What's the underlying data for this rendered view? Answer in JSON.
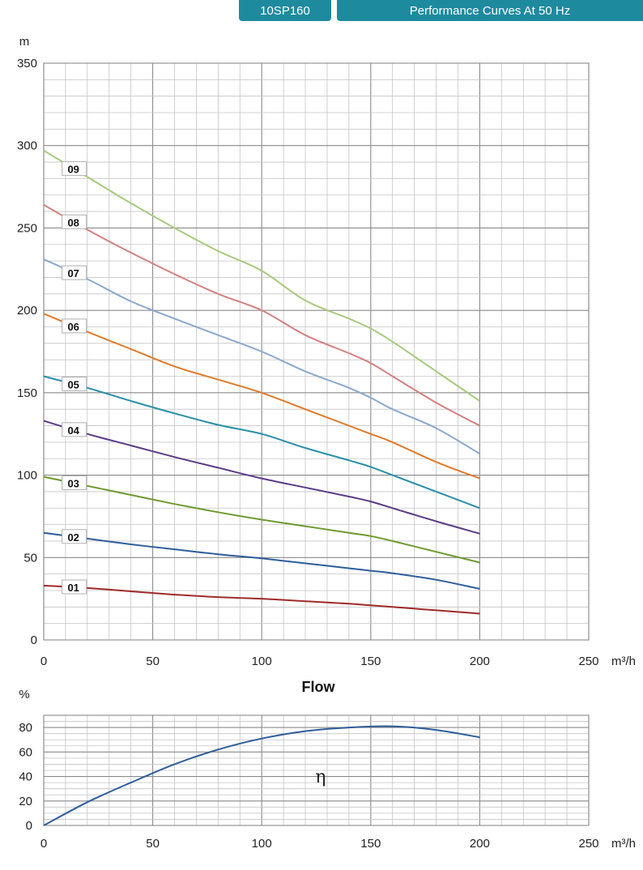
{
  "header": {
    "model": "10SP160",
    "title": "Performance Curves At 50 Hz"
  },
  "chart_data": [
    {
      "type": "line",
      "ylabel": "m",
      "xlabel": "Flow",
      "xunit": "m³/h",
      "xlim": [
        0,
        250
      ],
      "ylim": [
        0,
        350
      ],
      "xticks": [
        0,
        50,
        100,
        150,
        200,
        250
      ],
      "yticks": [
        0,
        50,
        100,
        150,
        200,
        250,
        300,
        350
      ],
      "grid": true,
      "x": [
        0,
        20,
        40,
        60,
        80,
        100,
        120,
        140,
        150,
        160,
        180,
        200
      ],
      "series": [
        {
          "name": "01",
          "color": "#9e2a2a",
          "values": [
            33,
            31.5,
            29.5,
            27.5,
            26,
            25,
            23.5,
            22,
            21,
            20,
            18,
            16
          ]
        },
        {
          "name": "02",
          "color": "#2f5d9a",
          "values": [
            65,
            61.5,
            58,
            55,
            52,
            49.5,
            46.5,
            43.5,
            42,
            40.5,
            36.5,
            31
          ]
        },
        {
          "name": "03",
          "color": "#6e9a2e",
          "values": [
            99,
            93.5,
            88,
            82.5,
            77.5,
            73,
            69,
            65,
            63,
            60,
            53.5,
            47
          ]
        },
        {
          "name": "04",
          "color": "#5b3b86",
          "values": [
            133,
            125,
            118,
            111,
            104.5,
            98,
            92.5,
            87,
            84,
            80,
            72,
            64.5
          ]
        },
        {
          "name": "05",
          "color": "#2a8fa5",
          "values": [
            160,
            153,
            145,
            137.5,
            130.5,
            125,
            116.5,
            109,
            105,
            100,
            90,
            80
          ]
        },
        {
          "name": "06",
          "color": "#e07a2a",
          "values": [
            198,
            187,
            176.5,
            166,
            158,
            150,
            140,
            130,
            125,
            120,
            108,
            98
          ]
        },
        {
          "name": "07",
          "color": "#8aa8cf",
          "values": [
            231,
            219,
            205.5,
            195,
            185,
            175,
            163,
            153,
            147,
            140,
            128.5,
            113
          ]
        },
        {
          "name": "08",
          "color": "#d48080",
          "values": [
            264,
            249,
            235,
            222,
            210,
            200,
            185,
            174,
            168,
            160,
            144,
            130
          ]
        },
        {
          "name": "09",
          "color": "#a9c97e",
          "values": [
            297,
            281,
            265,
            250,
            236,
            224,
            206,
            195,
            189,
            181,
            163,
            145
          ]
        }
      ]
    },
    {
      "type": "line",
      "ylabel": "%",
      "xunit": "m³/h",
      "xlim": [
        0,
        250
      ],
      "ylim": [
        0,
        90
      ],
      "xticks": [
        0,
        50,
        100,
        150,
        200,
        250
      ],
      "yticks": [
        0,
        20,
        40,
        60,
        80
      ],
      "grid": true,
      "annotation": "η",
      "x": [
        0,
        20,
        40,
        60,
        80,
        100,
        120,
        140,
        160,
        180,
        200
      ],
      "series": [
        {
          "color": "#2f5d9a",
          "values": [
            0,
            19,
            35,
            50,
            62,
            71,
            77,
            80,
            81,
            78,
            72
          ]
        }
      ]
    }
  ]
}
